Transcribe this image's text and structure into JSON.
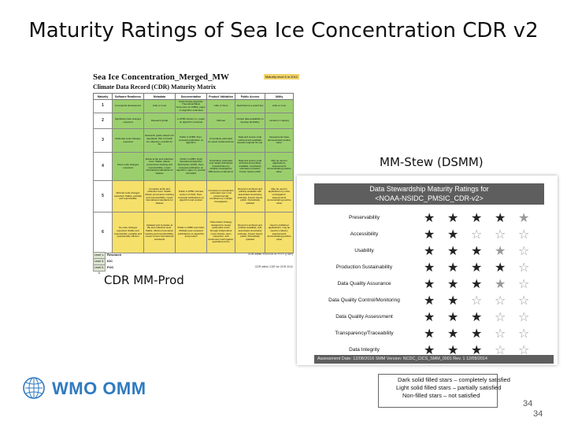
{
  "slide": {
    "title": "Maturity Ratings of Sea Ice Concentration CDR v2",
    "page_number": "34",
    "page_number_repeat": "34"
  },
  "left_panel": {
    "caption": "CDR MM-Prod",
    "title": "Sea Ice Concentration_Merged_MW",
    "subtitle": "Climate Data Record (CDR) Maturity Matrix",
    "doc_id": "Maturity level 6 in 2012",
    "headers": [
      "Maturity",
      "Software Readiness",
      "Metadata",
      "Documentation",
      "Product Validation",
      "Public Access",
      "Utility"
    ],
    "rows": [
      {
        "level": "1",
        "cells": [
          "Conceptual development",
          "Little or none",
          "Draft Climate Algorithm Theoretical Basis Document (C-ATBD); paper on algorithm submitted",
          "Little or None",
          "Restricted to a select few",
          "Little or none"
        ]
      },
      {
        "level": "2",
        "cells": [
          "Significant code changes expected",
          "Research grade",
          "C-ATBD Version 1+; paper on algorithm reviewed",
          "Minimal",
          "Limited data availability to develop familiarity",
          "Limited or ongoing"
        ]
      },
      {
        "level": "3",
        "cells": [
          "Moderate code changes expected",
          "Research grade; Meets int'l standards: ISO or FGDC for collection; netCDF for file",
          "Public C-ATBD; Peer-reviewed publication on algorithm",
          "Uncertainty estimated for select locations/times",
          "Data and source code archived and available; caveats required for use.",
          "Assessments have demonstrated positive value."
        ]
      },
      {
        "level": "4",
        "cells": [
          "Some code changes expected",
          "Exists at file and collection level. Stable. Allows provenance tracking and reproducibility; meets international standards for dataset",
          "Public C-ATBD; Draft Operational Algorithm Description (OAD); Peer-reviewed publication on algorithm; paper on product submitted",
          "Uncertainty estimated over widely distributed times/location by multiple investigators; Differences understood.",
          "Data and source code archived and publicly available; uncertainty estimates provided; Known issues public",
          "May be used in applications; assessments demonstrating positive value."
        ]
      },
      {
        "level": "5",
        "cells": [
          "Minimal code changes expected; Stable, portable and reproducible",
          "Complete at file and collection level. Stable. Allows provenance tracking and reproducibility; meets international standards for dataset",
          "Public C-ATBD, Review version of OAD, Peer-reviewed publications on algorithm and product",
          "Consistent uncertainties estimated over most environmental conditions by multiple investigators",
          "Record is archived and publicly available with associated uncertainty estimate; Known issues public. Periodically updated",
          "May be used in applications by other investigators; assessments demonstrating positive value"
        ]
      },
      {
        "level": "6",
        "cells": [
          "No code changes expected; Stable and reproducible; portable and operationally efficient",
          "Updated and complete at file and collection level. Stable. Allows provenance tracking and reproducibility; meets current international standards",
          "Public C-ATBD and OAD; Multiple peer-reviewed publications on algorithm and product",
          "Observation strategy designed to reveal systematic errors through independent cross-checks, open inspection, and continuous interrogation; quantified errors",
          "Record is archived and publicly available; with associated uncertainty estimate; Known issues public; Periodically updated",
          "Used in published applications; may be used by industry; assessments demonstrating positive value"
        ]
      }
    ],
    "legend": [
      {
        "level": "Level 1-2",
        "label": "Research",
        "cite": "CDR within XXXXXX in YYYY (CDR)"
      },
      {
        "level": "Level 3-4",
        "label": "IOC",
        "cite": ""
      },
      {
        "level": "Level 5-6",
        "label": "FOC",
        "cite": "CDR within CDR for CDR 2012"
      }
    ]
  },
  "right_panel": {
    "caption": "MM-Stew (DSMM)",
    "header_line1": "Data Stewardship Maturity Ratings for",
    "header_line2": "<NOAA-NSIDC_PMSIC_CDR-v2>",
    "ratings": [
      {
        "label": "Preservability",
        "stars": [
          "full",
          "full",
          "full",
          "full",
          "part"
        ]
      },
      {
        "label": "Accessibility",
        "stars": [
          "full",
          "full",
          "none",
          "none",
          "none"
        ]
      },
      {
        "label": "Usability",
        "stars": [
          "full",
          "full",
          "full",
          "part",
          "none"
        ]
      },
      {
        "label": "Production Sustainability",
        "stars": [
          "full",
          "full",
          "full",
          "full",
          "none"
        ]
      },
      {
        "label": "Data Quality Assurance",
        "stars": [
          "full",
          "full",
          "full",
          "part",
          "none"
        ]
      },
      {
        "label": "Data Quality Control/Monitoring",
        "stars": [
          "full",
          "full",
          "none",
          "none",
          "none"
        ]
      },
      {
        "label": "Data Quality Assessment",
        "stars": [
          "full",
          "full",
          "full",
          "none",
          "none"
        ]
      },
      {
        "label": "Transparency/Traceability",
        "stars": [
          "full",
          "full",
          "full",
          "none",
          "none"
        ]
      },
      {
        "label": "Data Integrity",
        "stars": [
          "full",
          "full",
          "full",
          "none",
          "none"
        ]
      }
    ],
    "footer": "Assessment Date: 12/08/2016   SMM Version: NCDC_CICS_SMM_0001 Rev. 1 12/09/2014",
    "legend": [
      "Dark solid filled stars – completely satisfied",
      "Light solid filled stars – partially satisfied",
      "Non-filled stars – not satisfied"
    ],
    "star_glyphs": {
      "full": "★",
      "part": "★",
      "none": "☆"
    }
  },
  "footer": {
    "logo_text": "WMO OMM",
    "brand_color": "#2f7ac0"
  }
}
